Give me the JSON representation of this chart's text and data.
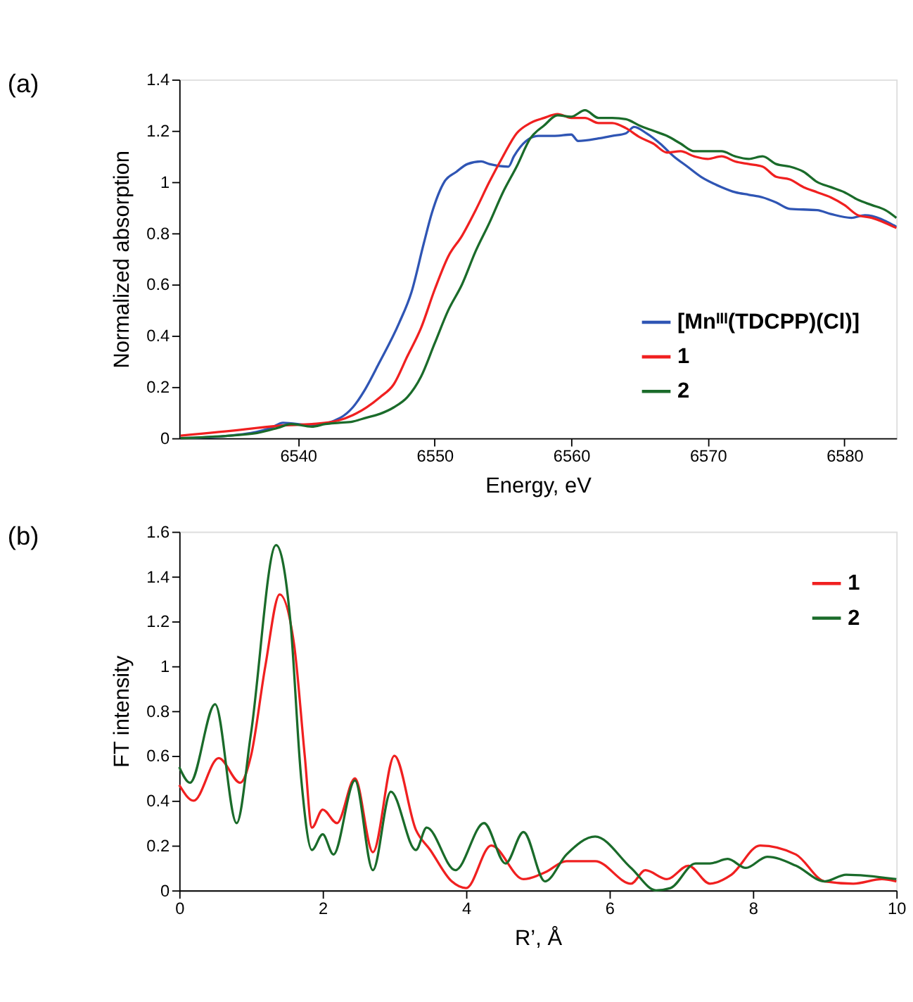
{
  "chart_data": [
    {
      "type": "line",
      "title": "(a)",
      "xlabel": "Energy, eV",
      "ylabel": "Normalized  absorption",
      "xlim": [
        6531.3,
        6583.8
      ],
      "xticks": [
        6540,
        6550,
        6560,
        6570,
        6580
      ],
      "ylim": [
        0,
        1.4
      ],
      "yticks": [
        0,
        0.2,
        0.4,
        0.6,
        0.8,
        1,
        1.2,
        1.4
      ],
      "grid": false,
      "legend": "bottom right",
      "line_style": "solid",
      "marker": "none",
      "series": [
        {
          "name": "[Mnᴵᴵᴵ(TDCPP)(Cl)]",
          "color": "#2f55b4",
          "x": [
            6531.4,
            6535,
            6538,
            6538.9,
            6541,
            6543.1,
            6544,
            6544.9,
            6545.9,
            6547.4,
            6548.3,
            6549.2,
            6549.8,
            6550.7,
            6551.6,
            6552.4,
            6553.4,
            6554,
            6555.4,
            6555.8,
            6556.7,
            6557.6,
            6558.8,
            6560,
            6560.5,
            6562,
            6563,
            6564,
            6564.6,
            6565.5,
            6566.5,
            6567.5,
            6568.5,
            6569.5,
            6571,
            6572,
            6573,
            6574,
            6575,
            6576,
            6578,
            6579,
            6580.5,
            6581.5,
            6583.8
          ],
          "values": [
            0.0,
            0.01,
            0.04,
            0.06,
            0.05,
            0.08,
            0.12,
            0.19,
            0.29,
            0.45,
            0.57,
            0.76,
            0.88,
            1.0,
            1.04,
            1.07,
            1.08,
            1.07,
            1.06,
            1.1,
            1.16,
            1.18,
            1.18,
            1.185,
            1.16,
            1.17,
            1.18,
            1.19,
            1.215,
            1.19,
            1.15,
            1.1,
            1.06,
            1.02,
            0.98,
            0.96,
            0.95,
            0.94,
            0.92,
            0.895,
            0.89,
            0.875,
            0.86,
            0.87,
            0.825
          ]
        },
        {
          "name": "1",
          "color": "#f02020",
          "x": [
            6531.4,
            6536.2,
            6537,
            6539,
            6541,
            6543,
            6544,
            6545,
            6546,
            6547,
            6548,
            6549,
            6550,
            6551,
            6552,
            6553,
            6554,
            6555,
            6556,
            6557,
            6558,
            6559,
            6560,
            6561,
            6562,
            6563,
            6564,
            6565,
            6566,
            6567,
            6568,
            6569,
            6570,
            6571,
            6572,
            6573,
            6574,
            6575,
            6576,
            6577,
            6578,
            6579,
            6580,
            6581,
            6582,
            6583.8
          ],
          "values": [
            0.01,
            0.035,
            0.04,
            0.05,
            0.055,
            0.07,
            0.09,
            0.12,
            0.16,
            0.21,
            0.32,
            0.43,
            0.58,
            0.71,
            0.79,
            0.89,
            1.0,
            1.1,
            1.19,
            1.23,
            1.25,
            1.265,
            1.25,
            1.25,
            1.23,
            1.23,
            1.21,
            1.175,
            1.15,
            1.115,
            1.12,
            1.1,
            1.09,
            1.1,
            1.08,
            1.07,
            1.06,
            1.02,
            1.01,
            0.98,
            0.96,
            0.94,
            0.91,
            0.87,
            0.86,
            0.82
          ]
        },
        {
          "name": "2",
          "color": "#1a6b2a",
          "x": [
            6531.4,
            6535,
            6537,
            6538.5,
            6539.5,
            6541,
            6542,
            6543,
            6544,
            6545,
            6546,
            6547,
            6548,
            6549,
            6550,
            6551,
            6552,
            6553,
            6554,
            6555,
            6556,
            6557,
            6558,
            6559,
            6560,
            6561,
            6562,
            6563,
            6564,
            6565,
            6566,
            6567,
            6568,
            6569,
            6570,
            6571,
            6572,
            6573,
            6574,
            6575,
            6576,
            6577,
            6578,
            6579,
            6580,
            6581,
            6582,
            6583,
            6583.8
          ],
          "values": [
            0.0,
            0.01,
            0.02,
            0.04,
            0.055,
            0.045,
            0.055,
            0.06,
            0.065,
            0.08,
            0.095,
            0.12,
            0.16,
            0.24,
            0.37,
            0.5,
            0.6,
            0.73,
            0.84,
            0.96,
            1.06,
            1.17,
            1.22,
            1.26,
            1.255,
            1.28,
            1.25,
            1.25,
            1.245,
            1.22,
            1.2,
            1.18,
            1.15,
            1.12,
            1.12,
            1.12,
            1.1,
            1.09,
            1.1,
            1.07,
            1.06,
            1.04,
            1.0,
            0.98,
            0.96,
            0.93,
            0.91,
            0.89,
            0.86
          ]
        }
      ]
    },
    {
      "type": "line",
      "title": "(b)",
      "xlabel": "R’, Å",
      "ylabel": "FT intensity",
      "xlim": [
        0,
        10
      ],
      "xticks": [
        0,
        2,
        4,
        6,
        8,
        10
      ],
      "ylim": [
        0,
        1.6
      ],
      "yticks": [
        0,
        0.2,
        0.4,
        0.6,
        0.8,
        1,
        1.2,
        1.4,
        1.6
      ],
      "grid": false,
      "legend": "top right",
      "line_style": "solid",
      "marker": "none",
      "series": [
        {
          "name": "1",
          "color": "#f02020",
          "x": [
            0,
            0.2,
            0.55,
            0.85,
            1.0,
            1.2,
            1.4,
            1.6,
            1.75,
            1.85,
            2.0,
            2.2,
            2.45,
            2.7,
            3.0,
            3.3,
            3.5,
            3.8,
            4.0,
            4.35,
            4.8,
            5.1,
            5.4,
            5.8,
            6.3,
            6.5,
            6.8,
            7.1,
            7.4,
            7.7,
            8.1,
            8.6,
            9.0,
            9.4,
            9.8,
            10
          ],
          "values": [
            0.47,
            0.4,
            0.59,
            0.48,
            0.6,
            1.0,
            1.32,
            1.1,
            0.6,
            0.28,
            0.36,
            0.3,
            0.5,
            0.17,
            0.6,
            0.27,
            0.18,
            0.04,
            0.01,
            0.2,
            0.05,
            0.08,
            0.13,
            0.13,
            0.03,
            0.09,
            0.05,
            0.11,
            0.03,
            0.07,
            0.2,
            0.16,
            0.04,
            0.03,
            0.05,
            0.04
          ]
        },
        {
          "name": "2",
          "color": "#1a6b2a",
          "x": [
            0,
            0.15,
            0.5,
            0.8,
            1.0,
            1.35,
            1.55,
            1.7,
            1.85,
            2.0,
            2.15,
            2.45,
            2.7,
            2.95,
            3.3,
            3.45,
            3.85,
            4.25,
            4.55,
            4.8,
            5.1,
            5.4,
            5.8,
            6.3,
            6.65,
            6.85,
            7.2,
            7.4,
            7.65,
            7.9,
            8.2,
            8.6,
            9.0,
            9.3,
            10
          ],
          "values": [
            0.55,
            0.48,
            0.83,
            0.3,
            0.7,
            1.54,
            1.2,
            0.5,
            0.18,
            0.25,
            0.16,
            0.49,
            0.09,
            0.44,
            0.18,
            0.28,
            0.09,
            0.3,
            0.12,
            0.26,
            0.04,
            0.16,
            0.24,
            0.1,
            0.0,
            0.01,
            0.12,
            0.12,
            0.14,
            0.1,
            0.15,
            0.11,
            0.04,
            0.07,
            0.05
          ]
        }
      ]
    }
  ]
}
